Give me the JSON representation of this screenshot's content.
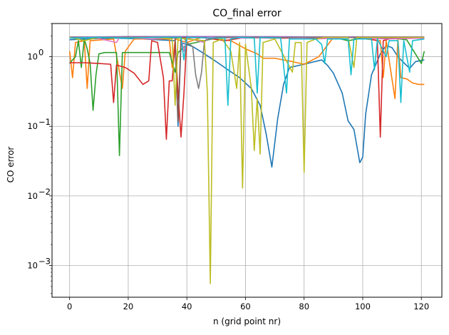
{
  "chart_data": {
    "type": "line",
    "title": "CO_final error",
    "xlabel": "n (grid point nr)",
    "ylabel": "CO error",
    "yscale": "log",
    "xlim": [
      -6,
      127
    ],
    "ylim": [
      0.00035,
      3.0
    ],
    "xticks": [
      0,
      20,
      40,
      60,
      80,
      100,
      120
    ],
    "xtick_labels": [
      "0",
      "20",
      "40",
      "60",
      "80",
      "100",
      "120"
    ],
    "yticks": [
      0.001,
      0.01,
      0.1,
      1
    ],
    "ytick_labels": [
      {
        "base": "10",
        "exp": "−3"
      },
      {
        "base": "10",
        "exp": "−2"
      },
      {
        "base": "10",
        "exp": "−1"
      },
      {
        "base": "10",
        "exp": "0"
      }
    ],
    "grid": true,
    "colors": {
      "blue": "#1f77b4",
      "orange": "#ff7f0e",
      "green": "#2ca02c",
      "red": "#d62728",
      "purple": "#9467bd",
      "brown": "#8c564b",
      "pink": "#e377c2",
      "gray": "#7f7f7f",
      "olive": "#bcbd22",
      "cyan": "#17becf"
    },
    "series": [
      {
        "color": "blue",
        "values": [
          [
            0,
            1.75
          ],
          [
            5,
            1.8
          ],
          [
            15,
            1.85
          ],
          [
            25,
            1.8
          ],
          [
            36,
            1.7
          ],
          [
            37,
            0.1
          ],
          [
            38,
            1.6
          ],
          [
            42,
            1.4
          ],
          [
            46,
            1.1
          ],
          [
            50,
            0.85
          ],
          [
            54,
            0.65
          ],
          [
            58,
            0.5
          ],
          [
            62,
            0.35
          ],
          [
            65,
            0.2
          ],
          [
            67,
            0.08
          ],
          [
            69,
            0.026
          ],
          [
            71,
            0.13
          ],
          [
            73,
            0.4
          ],
          [
            75,
            0.7
          ],
          [
            80,
            0.78
          ],
          [
            86,
            0.9
          ],
          [
            88,
            0.75
          ],
          [
            90,
            0.58
          ],
          [
            93,
            0.3
          ],
          [
            95,
            0.12
          ],
          [
            97,
            0.09
          ],
          [
            99,
            0.03
          ],
          [
            100,
            0.036
          ],
          [
            101,
            0.15
          ],
          [
            103,
            0.55
          ],
          [
            106,
            1.1
          ],
          [
            108,
            1.45
          ],
          [
            110,
            1.35
          ],
          [
            112,
            1.0
          ],
          [
            114,
            0.82
          ],
          [
            116,
            0.68
          ],
          [
            118,
            0.85
          ],
          [
            121,
            0.9
          ]
        ]
      },
      {
        "color": "orange",
        "values": [
          [
            0,
            1.2
          ],
          [
            1,
            0.5
          ],
          [
            2,
            1.6
          ],
          [
            5,
            1.7
          ],
          [
            6,
            0.35
          ],
          [
            7,
            1.7
          ],
          [
            15,
            1.8
          ],
          [
            18,
            0.35
          ],
          [
            19,
            1.2
          ],
          [
            22,
            1.8
          ],
          [
            34,
            1.8
          ],
          [
            35,
            0.7
          ],
          [
            36,
            1.8
          ],
          [
            40,
            1.6
          ],
          [
            45,
            1.9
          ],
          [
            55,
            1.7
          ],
          [
            60,
            1.3
          ],
          [
            64,
            1.1
          ],
          [
            66,
            0.95
          ],
          [
            70,
            0.95
          ],
          [
            76,
            0.85
          ],
          [
            80,
            0.78
          ],
          [
            85,
            1.0
          ],
          [
            90,
            1.9
          ],
          [
            95,
            1.9
          ],
          [
            101,
            1.8
          ],
          [
            106,
            1.7
          ],
          [
            107,
            0.5
          ],
          [
            108,
            1.7
          ],
          [
            111,
            0.25
          ],
          [
            112,
            1.8
          ],
          [
            113,
            0.5
          ],
          [
            115,
            0.48
          ],
          [
            117,
            0.42
          ],
          [
            119,
            0.4
          ],
          [
            121,
            0.4
          ]
        ]
      },
      {
        "color": "green",
        "values": [
          [
            0,
            0.8
          ],
          [
            1,
            0.9
          ],
          [
            2,
            1.0
          ],
          [
            3,
            1.7
          ],
          [
            4,
            0.7
          ],
          [
            5,
            1.8
          ],
          [
            6,
            1.3
          ],
          [
            7,
            0.8
          ],
          [
            8,
            0.17
          ],
          [
            9,
            0.55
          ],
          [
            10,
            1.1
          ],
          [
            12,
            1.15
          ],
          [
            14,
            1.15
          ],
          [
            16,
            1.15
          ],
          [
            17,
            0.038
          ],
          [
            18,
            1.15
          ],
          [
            22,
            1.15
          ],
          [
            26,
            1.15
          ],
          [
            30,
            1.15
          ],
          [
            34,
            1.15
          ],
          [
            36,
            0.6
          ],
          [
            37,
            1.15
          ],
          [
            40,
            1.5
          ],
          [
            50,
            1.85
          ],
          [
            60,
            1.9
          ],
          [
            70,
            1.9
          ],
          [
            80,
            1.9
          ],
          [
            90,
            1.9
          ],
          [
            95,
            1.7
          ],
          [
            100,
            1.85
          ],
          [
            110,
            1.85
          ],
          [
            115,
            1.75
          ],
          [
            120,
            0.8
          ],
          [
            121,
            1.2
          ]
        ]
      },
      {
        "color": "red",
        "values": [
          [
            0,
            0.82
          ],
          [
            5,
            0.82
          ],
          [
            10,
            0.8
          ],
          [
            14,
            0.78
          ],
          [
            15,
            0.22
          ],
          [
            16,
            0.76
          ],
          [
            19,
            0.7
          ],
          [
            22,
            0.58
          ],
          [
            25,
            0.4
          ],
          [
            27,
            0.45
          ],
          [
            28,
            1.7
          ],
          [
            30,
            1.6
          ],
          [
            32,
            0.5
          ],
          [
            33,
            0.065
          ],
          [
            34,
            0.45
          ],
          [
            35,
            0.45
          ],
          [
            36,
            1.6
          ],
          [
            37,
            0.3
          ],
          [
            38,
            0.07
          ],
          [
            39,
            0.3
          ],
          [
            40,
            1.9
          ],
          [
            45,
            1.9
          ],
          [
            53,
            1.7
          ],
          [
            60,
            1.9
          ],
          [
            70,
            1.85
          ],
          [
            80,
            1.85
          ],
          [
            90,
            1.9
          ],
          [
            100,
            1.9
          ],
          [
            105,
            1.7
          ],
          [
            106,
            0.07
          ],
          [
            107,
            1.7
          ],
          [
            110,
            1.85
          ],
          [
            121,
            1.85
          ]
        ]
      },
      {
        "color": "purple",
        "values": [
          [
            0,
            1.92
          ],
          [
            10,
            1.93
          ],
          [
            20,
            1.95
          ],
          [
            30,
            1.95
          ],
          [
            40,
            1.95
          ],
          [
            50,
            1.95
          ],
          [
            60,
            1.94
          ],
          [
            70,
            1.94
          ],
          [
            80,
            1.93
          ],
          [
            90,
            1.93
          ],
          [
            100,
            1.93
          ],
          [
            110,
            1.93
          ],
          [
            121,
            1.93
          ]
        ]
      },
      {
        "color": "brown",
        "values": [
          [
            0,
            1.9
          ],
          [
            12,
            1.88
          ],
          [
            24,
            1.9
          ],
          [
            36,
            1.88
          ],
          [
            37,
            0.12
          ],
          [
            38,
            1.88
          ],
          [
            50,
            1.88
          ],
          [
            62,
            1.9
          ],
          [
            74,
            1.88
          ],
          [
            86,
            1.9
          ],
          [
            98,
            1.9
          ],
          [
            110,
            1.88
          ],
          [
            121,
            1.88
          ]
        ]
      },
      {
        "color": "pink",
        "values": [
          [
            0,
            1.85
          ],
          [
            8,
            1.9
          ],
          [
            16,
            1.6
          ],
          [
            17,
            1.9
          ],
          [
            28,
            1.8
          ],
          [
            38,
            1.9
          ],
          [
            39,
            1.2
          ],
          [
            40,
            1.85
          ],
          [
            46,
            1.6
          ],
          [
            47,
            1.9
          ],
          [
            60,
            1.85
          ],
          [
            72,
            1.9
          ],
          [
            84,
            1.8
          ],
          [
            96,
            1.9
          ],
          [
            108,
            1.8
          ],
          [
            121,
            1.85
          ]
        ]
      },
      {
        "color": "gray",
        "values": [
          [
            0,
            1.88
          ],
          [
            10,
            1.9
          ],
          [
            20,
            1.9
          ],
          [
            30,
            1.88
          ],
          [
            39,
            1.85
          ],
          [
            40,
            1.6
          ],
          [
            42,
            1.4
          ],
          [
            43,
            0.55
          ],
          [
            44,
            0.35
          ],
          [
            45,
            0.6
          ],
          [
            46,
            1.7
          ],
          [
            48,
            1.8
          ],
          [
            50,
            1.9
          ],
          [
            60,
            1.9
          ],
          [
            70,
            1.88
          ],
          [
            80,
            1.9
          ],
          [
            90,
            1.9
          ],
          [
            100,
            1.88
          ],
          [
            110,
            1.9
          ],
          [
            121,
            1.9
          ]
        ]
      },
      {
        "color": "olive",
        "values": [
          [
            0,
            1.9
          ],
          [
            5,
            1.7
          ],
          [
            10,
            1.9
          ],
          [
            20,
            1.85
          ],
          [
            30,
            1.9
          ],
          [
            35,
            1.8
          ],
          [
            36,
            0.2
          ],
          [
            37,
            1.85
          ],
          [
            46,
            1.7
          ],
          [
            47,
            0.3
          ],
          [
            48,
            0.00055
          ],
          [
            49,
            1.6
          ],
          [
            52,
            1.8
          ],
          [
            55,
            1.2
          ],
          [
            57,
            0.35
          ],
          [
            58,
            1.6
          ],
          [
            59,
            0.013
          ],
          [
            60,
            1.5
          ],
          [
            62,
            0.35
          ],
          [
            63,
            0.045
          ],
          [
            64,
            0.25
          ],
          [
            65,
            0.04
          ],
          [
            66,
            1.6
          ],
          [
            70,
            1.8
          ],
          [
            76,
            0.6
          ],
          [
            77,
            1.6
          ],
          [
            79,
            1.6
          ],
          [
            80,
            0.022
          ],
          [
            81,
            1.6
          ],
          [
            84,
            1.8
          ],
          [
            87,
            1.9
          ],
          [
            95,
            1.9
          ],
          [
            97,
            0.7
          ],
          [
            98,
            1.9
          ],
          [
            105,
            1.9
          ],
          [
            110,
            1.9
          ],
          [
            121,
            1.9
          ]
        ]
      },
      {
        "color": "cyan",
        "values": [
          [
            0,
            1.85
          ],
          [
            10,
            1.9
          ],
          [
            20,
            1.85
          ],
          [
            30,
            1.9
          ],
          [
            38,
            1.9
          ],
          [
            39,
            0.9
          ],
          [
            40,
            1.9
          ],
          [
            50,
            1.85
          ],
          [
            53,
            1.85
          ],
          [
            54,
            0.2
          ],
          [
            55,
            1.8
          ],
          [
            58,
            1.9
          ],
          [
            63,
            1.85
          ],
          [
            64,
            0.3
          ],
          [
            65,
            1.9
          ],
          [
            72,
            1.85
          ],
          [
            74,
            0.3
          ],
          [
            75,
            1.8
          ],
          [
            84,
            1.8
          ],
          [
            86,
            1.5
          ],
          [
            87,
            0.8
          ],
          [
            88,
            1.8
          ],
          [
            95,
            1.8
          ],
          [
            96,
            0.55
          ],
          [
            97,
            1.8
          ],
          [
            103,
            1.8
          ],
          [
            104,
            0.65
          ],
          [
            105,
            1.8
          ],
          [
            108,
            1.0
          ],
          [
            109,
            1.7
          ],
          [
            112,
            1.7
          ],
          [
            113,
            0.22
          ],
          [
            114,
            1.7
          ],
          [
            116,
            0.6
          ],
          [
            117,
            1.7
          ],
          [
            121,
            1.8
          ]
        ]
      }
    ]
  }
}
